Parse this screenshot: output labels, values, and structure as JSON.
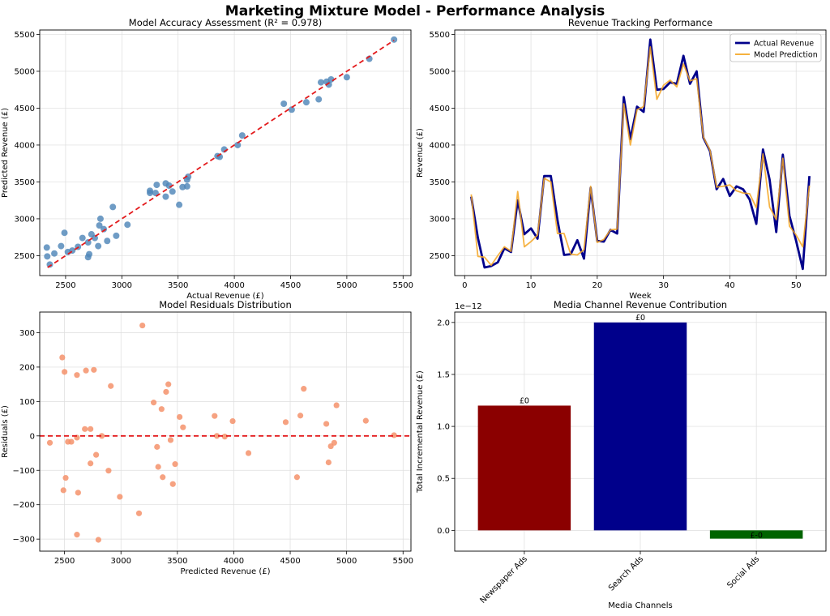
{
  "figure": {
    "title": "Marketing Mixture Model - Performance Analysis"
  },
  "chart_data": [
    {
      "id": "accuracy",
      "type": "scatter",
      "title": "Model Accuracy Assessment (R² = 0.978)",
      "xlabel": "Actual Revenue (£)",
      "ylabel": "Predicted Revenue (£)",
      "xlim": [
        2270,
        5570
      ],
      "ylim": [
        2230,
        5560
      ],
      "xticks": [
        2500,
        3000,
        3500,
        4000,
        4500,
        5000,
        5500
      ],
      "yticks": [
        2500,
        3000,
        3500,
        4000,
        4500,
        5000,
        5500
      ],
      "grid": true,
      "point_color": "#4f86b8",
      "reference_line": {
        "from": [
          2340,
          2340
        ],
        "to": [
          5420,
          5420
        ],
        "color": "#e31a1c",
        "style": "dashed"
      },
      "points": [
        [
          2333,
          2610
        ],
        [
          2337,
          2490
        ],
        [
          2360,
          2380
        ],
        [
          2400,
          2530
        ],
        [
          2460,
          2630
        ],
        [
          2490,
          2810
        ],
        [
          2520,
          2550
        ],
        [
          2560,
          2570
        ],
        [
          2610,
          2620
        ],
        [
          2650,
          2740
        ],
        [
          2700,
          2680
        ],
        [
          2700,
          2480
        ],
        [
          2710,
          2520
        ],
        [
          2730,
          2790
        ],
        [
          2760,
          2740
        ],
        [
          2790,
          2630
        ],
        [
          2800,
          2910
        ],
        [
          2810,
          3000
        ],
        [
          2840,
          2860
        ],
        [
          2870,
          2700
        ],
        [
          2920,
          3160
        ],
        [
          2950,
          2770
        ],
        [
          3050,
          2920
        ],
        [
          3250,
          3380
        ],
        [
          3250,
          3350
        ],
        [
          3300,
          3350
        ],
        [
          3310,
          3460
        ],
        [
          3390,
          3300
        ],
        [
          3390,
          3480
        ],
        [
          3420,
          3450
        ],
        [
          3450,
          3370
        ],
        [
          3510,
          3190
        ],
        [
          3540,
          3430
        ],
        [
          3580,
          3440
        ],
        [
          3580,
          3530
        ],
        [
          3590,
          3570
        ],
        [
          3850,
          3850
        ],
        [
          3870,
          3840
        ],
        [
          3910,
          3940
        ],
        [
          4030,
          4000
        ],
        [
          4070,
          4130
        ],
        [
          4440,
          4560
        ],
        [
          4510,
          4480
        ],
        [
          4640,
          4580
        ],
        [
          4750,
          4620
        ],
        [
          4770,
          4850
        ],
        [
          4820,
          4860
        ],
        [
          4840,
          4820
        ],
        [
          4860,
          4890
        ],
        [
          5000,
          4920
        ],
        [
          5200,
          5170
        ],
        [
          5420,
          5430
        ]
      ]
    },
    {
      "id": "tracking",
      "type": "line",
      "title": "Revenue Tracking Performance",
      "xlabel": "Week",
      "ylabel": "Revenue (£)",
      "xlim": [
        -1.5,
        54.5
      ],
      "ylim": [
        2230,
        5560
      ],
      "xticks": [
        0,
        10,
        20,
        30,
        40,
        50
      ],
      "yticks": [
        2500,
        3000,
        3500,
        4000,
        4500,
        5000,
        5500
      ],
      "grid": true,
      "legend_position": "top-right",
      "x": [
        1,
        2,
        3,
        4,
        5,
        6,
        7,
        8,
        9,
        10,
        11,
        12,
        13,
        14,
        15,
        16,
        17,
        18,
        19,
        20,
        21,
        22,
        23,
        24,
        25,
        26,
        27,
        28,
        29,
        30,
        31,
        32,
        33,
        34,
        35,
        36,
        37,
        38,
        39,
        40,
        41,
        42,
        43,
        44,
        45,
        46,
        47,
        48,
        49,
        50,
        51,
        52
      ],
      "series": [
        {
          "name": "Actual Revenue",
          "color": "#00008b",
          "values": [
            3300,
            2740,
            2340,
            2360,
            2410,
            2600,
            2550,
            3250,
            2790,
            2870,
            2730,
            3580,
            3580,
            2980,
            2510,
            2520,
            2710,
            2460,
            3420,
            2700,
            2690,
            2850,
            2800,
            4650,
            4080,
            4520,
            4450,
            5430,
            4750,
            4760,
            4850,
            4830,
            5210,
            4830,
            5000,
            4100,
            3920,
            3400,
            3540,
            3310,
            3440,
            3400,
            3260,
            2930,
            3940,
            3530,
            2820,
            3870,
            3040,
            2700,
            2320,
            3580
          ]
        },
        {
          "name": "Model Prediction",
          "color": "#f5a623",
          "values": [
            3330,
            2490,
            2480,
            2370,
            2500,
            2620,
            2560,
            3370,
            2620,
            2690,
            2780,
            3550,
            3500,
            2800,
            2800,
            2520,
            2510,
            2580,
            3440,
            2680,
            2720,
            2850,
            2860,
            4560,
            4000,
            4480,
            4520,
            5330,
            4620,
            4810,
            4880,
            4790,
            5100,
            4870,
            4900,
            4110,
            3930,
            3430,
            3440,
            3460,
            3380,
            3350,
            3340,
            3150,
            3880,
            3160,
            2990,
            3820,
            2900,
            2780,
            2620,
            3450
          ]
        }
      ]
    },
    {
      "id": "residuals",
      "type": "scatter",
      "title": "Model Residuals Distribution",
      "xlabel": "Predicted Revenue (£)",
      "ylabel": "Residuals (£)",
      "xlim": [
        2280,
        5570
      ],
      "ylim": [
        -335,
        360
      ],
      "xticks": [
        2500,
        3000,
        3500,
        4000,
        4500,
        5000,
        5500
      ],
      "yticks": [
        -300,
        -200,
        -100,
        0,
        100,
        200,
        300
      ],
      "ytick_labels": [
        "−300",
        "−200",
        "−100",
        "0",
        "100",
        "200",
        "300"
      ],
      "grid": true,
      "point_color": "#f4926b",
      "reference_line": {
        "y": 0,
        "color": "#e31a1c",
        "style": "dashed"
      },
      "points": [
        [
          2370,
          -20
        ],
        [
          2480,
          228
        ],
        [
          2490,
          -158
        ],
        [
          2500,
          186
        ],
        [
          2510,
          -122
        ],
        [
          2530,
          -17
        ],
        [
          2560,
          -17
        ],
        [
          2610,
          -5
        ],
        [
          2610,
          177
        ],
        [
          2620,
          -165
        ],
        [
          2610,
          -287
        ],
        [
          2680,
          20
        ],
        [
          2690,
          190
        ],
        [
          2730,
          20
        ],
        [
          2730,
          -80
        ],
        [
          2760,
          192
        ],
        [
          2780,
          -55
        ],
        [
          2800,
          -302
        ],
        [
          2830,
          0
        ],
        [
          2890,
          -101
        ],
        [
          2910,
          145
        ],
        [
          2990,
          -177
        ],
        [
          3160,
          -225
        ],
        [
          3190,
          321
        ],
        [
          3290,
          97
        ],
        [
          3320,
          -32
        ],
        [
          3330,
          -90
        ],
        [
          3360,
          78
        ],
        [
          3370,
          -120
        ],
        [
          3400,
          128
        ],
        [
          3420,
          150
        ],
        [
          3440,
          -12
        ],
        [
          3460,
          -140
        ],
        [
          3480,
          -82
        ],
        [
          3520,
          55
        ],
        [
          3550,
          25
        ],
        [
          3830,
          58
        ],
        [
          3850,
          0
        ],
        [
          3920,
          -2
        ],
        [
          3990,
          43
        ],
        [
          4130,
          -50
        ],
        [
          4460,
          40
        ],
        [
          4560,
          -120
        ],
        [
          4590,
          59
        ],
        [
          4620,
          137
        ],
        [
          4820,
          35
        ],
        [
          4840,
          -77
        ],
        [
          4860,
          -30
        ],
        [
          4890,
          -20
        ],
        [
          4910,
          89
        ],
        [
          5170,
          44
        ],
        [
          5420,
          2
        ]
      ]
    },
    {
      "id": "contribution",
      "type": "bar",
      "title": "Media Channel Revenue Contribution",
      "xlabel": "Media Channels",
      "ylabel": "Total Incremental Revenue (£)",
      "scale_note": "1e−12",
      "ylim": [
        -0.2,
        2.1
      ],
      "yticks": [
        0.0,
        0.5,
        1.0,
        1.5,
        2.0
      ],
      "ytick_labels": [
        "0.0",
        "0.5",
        "1.0",
        "1.5",
        "2.0"
      ],
      "grid": true,
      "categories": [
        "Newspaper Ads",
        "Search Ads",
        "Social Ads"
      ],
      "values": [
        1.2,
        2.0,
        -0.08
      ],
      "bar_labels": [
        "£0",
        "£0",
        "£-0"
      ],
      "colors": [
        "#8b0000",
        "#00008b",
        "#006400"
      ]
    }
  ]
}
